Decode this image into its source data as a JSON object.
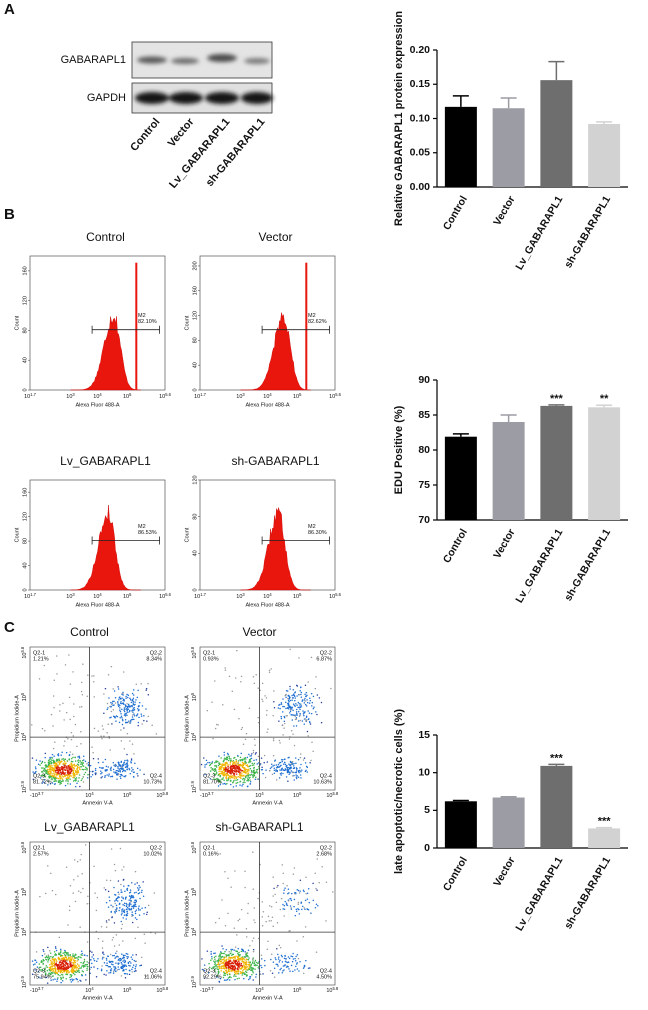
{
  "panel_labels": [
    "A",
    "B",
    "C"
  ],
  "blot": {
    "row_labels": [
      "GABARAPL1",
      "GAPDH"
    ],
    "lanes": [
      "Control",
      "Vector",
      "Lv_GABARAPL1",
      "sh-GABARAPL1"
    ]
  },
  "flow": {
    "x_label": "Alexa Fluor 488-A",
    "y_label": "Count",
    "gate": "M2",
    "xticks": [
      {
        "base": "10",
        "exp": "1.7"
      },
      {
        "base": "10",
        "exp": "3"
      },
      {
        "base": "10",
        "exp": "4"
      },
      {
        "base": "10",
        "exp": "5"
      },
      {
        "base": "10",
        "exp": "5.6"
      }
    ],
    "panels": [
      {
        "title": "Control",
        "percent": "82.10%",
        "ylim": [
          0,
          180
        ],
        "yticks": [
          0,
          40,
          80,
          120,
          160
        ]
      },
      {
        "title": "Vector",
        "percent": "82.62%",
        "ylim": [
          0,
          216
        ],
        "yticks": [
          0,
          40,
          80,
          120,
          160,
          200
        ]
      },
      {
        "title": "Lv_GABARAPL1",
        "percent": "86.53%",
        "ylim": [
          0,
          180
        ],
        "yticks": [
          0,
          40,
          80,
          120,
          160
        ]
      },
      {
        "title": "sh-GABARAPL1",
        "percent": "86.30%",
        "ylim": [
          0,
          120
        ],
        "yticks": [
          0,
          40,
          80,
          120
        ]
      }
    ]
  },
  "apoptosis": {
    "x_label": "Annexin V-A",
    "y_label": "Propidium Iodide-A",
    "xticks": [
      {
        "base": "-10",
        "exp": "3.7"
      },
      {
        "base": "10",
        "exp": "4"
      },
      {
        "base": "10",
        "exp": "5"
      },
      {
        "base": "10",
        "exp": "5.8"
      }
    ],
    "yticks": [
      {
        "base": "10",
        "exp": "2.9"
      },
      {
        "base": "10",
        "exp": "4"
      },
      {
        "base": "10",
        "exp": "5"
      },
      {
        "base": "10",
        "exp": "5.8"
      }
    ],
    "panels": [
      {
        "title": "Control",
        "quadrants": [
          {
            "name": "Q2-1",
            "percent": "1.21%"
          },
          {
            "name": "Q2-2",
            "percent": "8.34%"
          },
          {
            "name": "Q2-3",
            "percent": "81.72%"
          },
          {
            "name": "Q2-4",
            "percent": "10.73%"
          }
        ]
      },
      {
        "title": "Vector",
        "quadrants": [
          {
            "name": "Q2-1",
            "percent": "0.93%"
          },
          {
            "name": "Q2-2",
            "percent": "6.87%"
          },
          {
            "name": "Q2-3",
            "percent": "81.70%"
          },
          {
            "name": "Q2-4",
            "percent": "10.63%"
          }
        ]
      },
      {
        "title": "Lv_GABARAPL1",
        "quadrants": [
          {
            "name": "Q2-1",
            "percent": "2.57%"
          },
          {
            "name": "Q2-2",
            "percent": "10.02%"
          },
          {
            "name": "Q2-3",
            "percent": "75.94%"
          },
          {
            "name": "Q2-4",
            "percent": "11.06%"
          }
        ]
      },
      {
        "title": "sh-GABARAPL1",
        "quadrants": [
          {
            "name": "Q2-1",
            "percent": "0.16%"
          },
          {
            "name": "Q2-2",
            "percent": "2.68%"
          },
          {
            "name": "Q2-3",
            "percent": "92.29%"
          },
          {
            "name": "Q2-4",
            "percent": "4.50%"
          }
        ]
      }
    ]
  },
  "chart_data": [
    {
      "type": "bar",
      "y_label": "Relative GABARAPL1 protein expression",
      "categories": [
        "Control",
        "Vector",
        "Lv_GABARAPL1",
        "sh-GABARAPL1"
      ],
      "values": [
        0.117,
        0.115,
        0.156,
        0.092
      ],
      "errors": [
        0.016,
        0.015,
        0.027,
        0.003
      ],
      "colors": [
        "#000000",
        "#9c9ca4",
        "#6e6e6e",
        "#d2d2d2"
      ],
      "ylim": [
        0,
        0.2
      ],
      "yticks": [
        {
          "value": 0,
          "label": "0.00"
        },
        0.05,
        {
          "value": 0.1,
          "label": "0.10"
        },
        0.15,
        {
          "value": 0.2,
          "label": "0.20"
        }
      ]
    },
    {
      "type": "bar",
      "y_label": "EDU Positive (%)",
      "categories": [
        "Control",
        "Vector",
        "Lv_GABARAPL1",
        "sh-GABARAPL1"
      ],
      "values": [
        81.9,
        84.0,
        86.3,
        86.1
      ],
      "errors": [
        0.4,
        1.0,
        0.15,
        0.3
      ],
      "annotations": [
        null,
        null,
        "***",
        "**"
      ],
      "colors": [
        "#000000",
        "#9c9ca4",
        "#6e6e6e",
        "#d2d2d2"
      ],
      "ylim": [
        70,
        90
      ],
      "yticks": [
        70,
        75,
        80,
        85,
        90
      ]
    },
    {
      "type": "bar",
      "y_label": "late apoptotic/necrotic cells (%)",
      "categories": [
        "Control",
        "Vector",
        "Lv_GABARAPL1",
        "sh-GABARAPL1"
      ],
      "values": [
        6.2,
        6.7,
        10.9,
        2.6
      ],
      "errors": [
        0.1,
        0.1,
        0.2,
        0.1
      ],
      "annotations": [
        null,
        null,
        "***",
        "***"
      ],
      "colors": [
        "#000000",
        "#9c9ca4",
        "#6e6e6e",
        "#d2d2d2"
      ],
      "ylim": [
        0,
        15
      ],
      "yticks": [
        0,
        5,
        10,
        15
      ]
    }
  ]
}
